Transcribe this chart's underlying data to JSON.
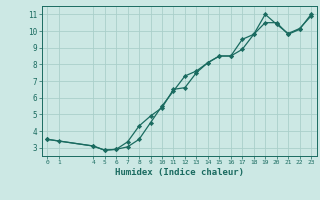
{
  "xlabel": "Humidex (Indice chaleur)",
  "bg_color": "#cce8e4",
  "grid_color": "#aacfca",
  "line_color": "#1a6b60",
  "marker_color": "#1a6b60",
  "xlim": [
    -0.5,
    23.5
  ],
  "ylim": [
    2.5,
    11.5
  ],
  "xticks": [
    0,
    1,
    4,
    5,
    6,
    7,
    8,
    9,
    10,
    11,
    12,
    13,
    14,
    15,
    16,
    17,
    18,
    19,
    20,
    21,
    22,
    23
  ],
  "yticks": [
    3,
    4,
    5,
    6,
    7,
    8,
    9,
    10,
    11
  ],
  "curve1_x": [
    0,
    1,
    4,
    5,
    6,
    7,
    8,
    9,
    10,
    11,
    12,
    13,
    14,
    15,
    16,
    17,
    18,
    19,
    20,
    21,
    22,
    23
  ],
  "curve1_y": [
    3.5,
    3.4,
    3.1,
    2.85,
    2.9,
    3.05,
    3.5,
    4.5,
    5.5,
    6.4,
    7.3,
    7.6,
    8.1,
    8.5,
    8.5,
    8.9,
    9.8,
    11.0,
    10.4,
    9.85,
    10.15,
    10.9
  ],
  "curve2_x": [
    0,
    4,
    5,
    6,
    7,
    8,
    9,
    10,
    11,
    12,
    13,
    14,
    15,
    16,
    17,
    18,
    19,
    20,
    21,
    22,
    23
  ],
  "curve2_y": [
    3.5,
    3.1,
    2.85,
    2.9,
    3.35,
    4.3,
    4.9,
    5.4,
    6.5,
    6.6,
    7.5,
    8.1,
    8.5,
    8.5,
    9.5,
    9.8,
    10.5,
    10.5,
    9.8,
    10.1,
    11.0
  ]
}
